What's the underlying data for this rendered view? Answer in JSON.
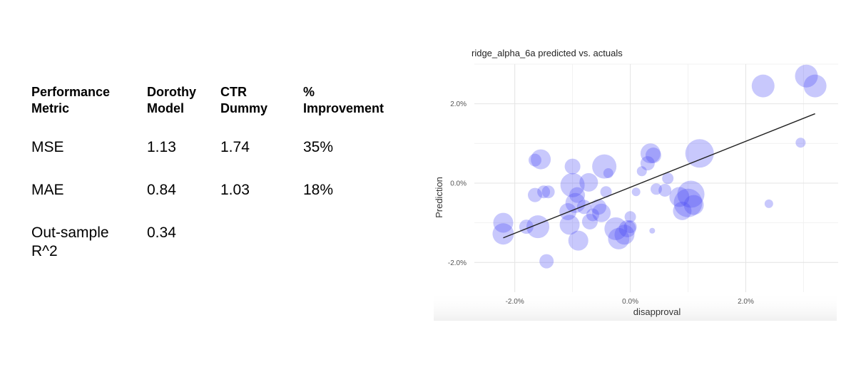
{
  "table": {
    "headers": [
      "Performance\nMetric",
      "Dorothy\nModel",
      "CTR\nDummy",
      "%\nImprovement"
    ],
    "rows": [
      [
        "MSE",
        "1.13",
        "1.74",
        "35%"
      ],
      [
        "MAE",
        "0.84",
        "1.03",
        "18%"
      ],
      [
        "Out-sample\nR^2",
        "0.34",
        "",
        ""
      ]
    ]
  },
  "chart_data": {
    "type": "scatter",
    "title": "ridge_alpha_6a predicted vs. actuals",
    "xlabel": "disapproval",
    "ylabel": "Prediction",
    "xlim": [
      -2.7,
      3.6
    ],
    "ylim": [
      -2.75,
      3.0
    ],
    "xticks": [
      -2.0,
      0.0,
      2.0
    ],
    "yticks": [
      -2.0,
      0.0,
      2.0
    ],
    "tick_format": "percent",
    "grid": true,
    "point_color": "#4a4af5",
    "line_color": "#222222",
    "trend_line": {
      "x": [
        -2.2,
        3.2
      ],
      "y": [
        -1.38,
        1.75
      ]
    },
    "points": [
      {
        "x": -2.2,
        "y": -1.0,
        "size": 14
      },
      {
        "x": -2.2,
        "y": -1.28,
        "size": 15
      },
      {
        "x": -1.8,
        "y": -1.1,
        "size": 10
      },
      {
        "x": -1.6,
        "y": -1.1,
        "size": 16
      },
      {
        "x": -1.65,
        "y": 0.58,
        "size": 9
      },
      {
        "x": -1.55,
        "y": 0.6,
        "size": 14
      },
      {
        "x": -1.65,
        "y": -0.3,
        "size": 10
      },
      {
        "x": -1.5,
        "y": -0.22,
        "size": 9
      },
      {
        "x": -1.42,
        "y": -0.22,
        "size": 9
      },
      {
        "x": -1.45,
        "y": -1.97,
        "size": 10
      },
      {
        "x": -1.05,
        "y": -1.05,
        "size": 14
      },
      {
        "x": -1.08,
        "y": -0.72,
        "size": 12
      },
      {
        "x": -1.0,
        "y": 0.42,
        "size": 11
      },
      {
        "x": -1.0,
        "y": -0.05,
        "size": 17
      },
      {
        "x": -0.95,
        "y": -0.5,
        "size": 14
      },
      {
        "x": -0.92,
        "y": -0.3,
        "size": 11
      },
      {
        "x": -0.9,
        "y": -1.45,
        "size": 14
      },
      {
        "x": -0.8,
        "y": -0.6,
        "size": 10
      },
      {
        "x": -0.72,
        "y": 0.02,
        "size": 13
      },
      {
        "x": -0.7,
        "y": -0.97,
        "size": 11
      },
      {
        "x": -0.65,
        "y": -0.8,
        "size": 9
      },
      {
        "x": -0.55,
        "y": -0.6,
        "size": 11
      },
      {
        "x": -0.5,
        "y": -0.75,
        "size": 13
      },
      {
        "x": -0.45,
        "y": 0.42,
        "size": 17
      },
      {
        "x": -0.42,
        "y": -0.22,
        "size": 8
      },
      {
        "x": -0.38,
        "y": 0.25,
        "size": 7
      },
      {
        "x": -0.25,
        "y": -1.15,
        "size": 16
      },
      {
        "x": -0.2,
        "y": -1.4,
        "size": 15
      },
      {
        "x": -0.1,
        "y": -1.3,
        "size": 14
      },
      {
        "x": -0.05,
        "y": -1.15,
        "size": 12
      },
      {
        "x": 0.0,
        "y": -0.85,
        "size": 8
      },
      {
        "x": 0.0,
        "y": -1.1,
        "size": 9
      },
      {
        "x": 0.1,
        "y": -0.22,
        "size": 6
      },
      {
        "x": 0.2,
        "y": 0.3,
        "size": 7
      },
      {
        "x": 0.3,
        "y": 0.5,
        "size": 10
      },
      {
        "x": 0.35,
        "y": 0.75,
        "size": 14
      },
      {
        "x": 0.4,
        "y": 0.7,
        "size": 11
      },
      {
        "x": 0.38,
        "y": -1.2,
        "size": 4
      },
      {
        "x": 0.45,
        "y": -0.15,
        "size": 8
      },
      {
        "x": 0.65,
        "y": 0.12,
        "size": 8
      },
      {
        "x": 0.6,
        "y": -0.18,
        "size": 9
      },
      {
        "x": 0.85,
        "y": -0.35,
        "size": 14
      },
      {
        "x": 0.9,
        "y": -0.7,
        "size": 13
      },
      {
        "x": 1.0,
        "y": -0.5,
        "size": 20
      },
      {
        "x": 1.05,
        "y": -0.28,
        "size": 19
      },
      {
        "x": 1.1,
        "y": -0.55,
        "size": 14
      },
      {
        "x": 1.2,
        "y": 0.75,
        "size": 20
      },
      {
        "x": 2.3,
        "y": 2.45,
        "size": 16
      },
      {
        "x": 2.4,
        "y": -0.52,
        "size": 6
      },
      {
        "x": 2.95,
        "y": 1.02,
        "size": 7
      },
      {
        "x": 3.05,
        "y": 2.7,
        "size": 16
      },
      {
        "x": 3.2,
        "y": 2.45,
        "size": 16
      }
    ]
  }
}
